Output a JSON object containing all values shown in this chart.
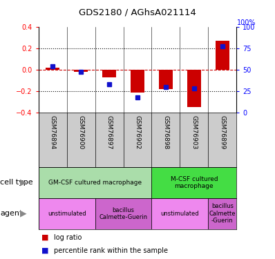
{
  "title": "GDS2180 / AGhsA021114",
  "samples": [
    "GSM76894",
    "GSM76900",
    "GSM76897",
    "GSM76902",
    "GSM76898",
    "GSM76903",
    "GSM76899"
  ],
  "log_ratio": [
    0.02,
    -0.02,
    -0.07,
    -0.21,
    -0.18,
    -0.35,
    0.27
  ],
  "percentile_rank": [
    54,
    48,
    33,
    18,
    30,
    28,
    78
  ],
  "ylim_left": [
    -0.4,
    0.4
  ],
  "yticks_left": [
    -0.4,
    -0.2,
    0.0,
    0.2,
    0.4
  ],
  "yticks_right": [
    0,
    25,
    50,
    75,
    100
  ],
  "bar_color": "#cc0000",
  "dot_color": "#1111cc",
  "hline_color": "#cc0000",
  "dotted_color": "#000000",
  "xticklabel_bg": "#cccccc",
  "cell_type_groups": [
    {
      "label": "GM-CSF cultured macrophage",
      "start": 0,
      "end": 4,
      "color": "#aaddaa"
    },
    {
      "label": "M-CSF cultured\nmacrophage",
      "start": 4,
      "end": 7,
      "color": "#44dd44"
    }
  ],
  "agent_groups": [
    {
      "label": "unstimulated",
      "start": 0,
      "end": 2,
      "color": "#ee88ee"
    },
    {
      "label": "bacillus\nCalmette-Guerin",
      "start": 2,
      "end": 4,
      "color": "#cc66cc"
    },
    {
      "label": "unstimulated",
      "start": 4,
      "end": 6,
      "color": "#ee88ee"
    },
    {
      "label": "bacillus\nCalmette\n-Guerin",
      "start": 6,
      "end": 7,
      "color": "#cc66cc"
    }
  ],
  "legend_red_label": "log ratio",
  "legend_blue_label": "percentile rank within the sample",
  "cell_type_label": "cell type",
  "agent_label": "agent"
}
